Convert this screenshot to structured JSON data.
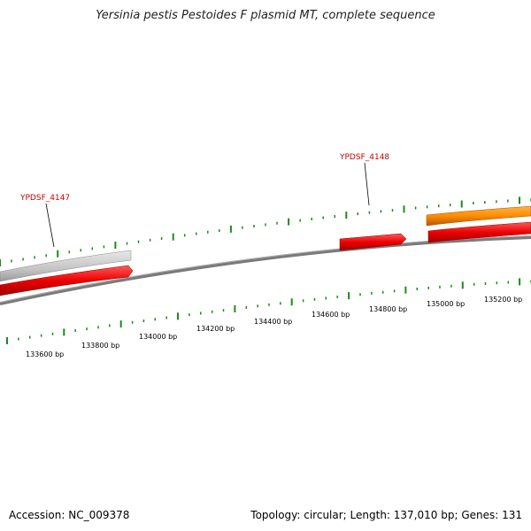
{
  "title": "Yersinia pestis Pestoides F plasmid MT, complete sequence",
  "accession": "Accession: NC_009378",
  "summary": "Topology: circular; Length: 137,010 bp; Genes: 131",
  "gene_labels": [
    "YPDSF_4147",
    "YPDSF_4148"
  ],
  "tick_labels": [
    "133600 bp",
    "133800 bp",
    "134000 bp",
    "134200 bp",
    "134400 bp",
    "134600 bp",
    "134800 bp",
    "135000 bp",
    "135200 bp"
  ],
  "colors": {
    "backbone": "#808080",
    "gene_forward": "#ff0000",
    "gene_other": "#ff8c00",
    "gene_gray": "#bdbdbd",
    "tick": "#1a8a1a",
    "label": "#cc0000"
  }
}
